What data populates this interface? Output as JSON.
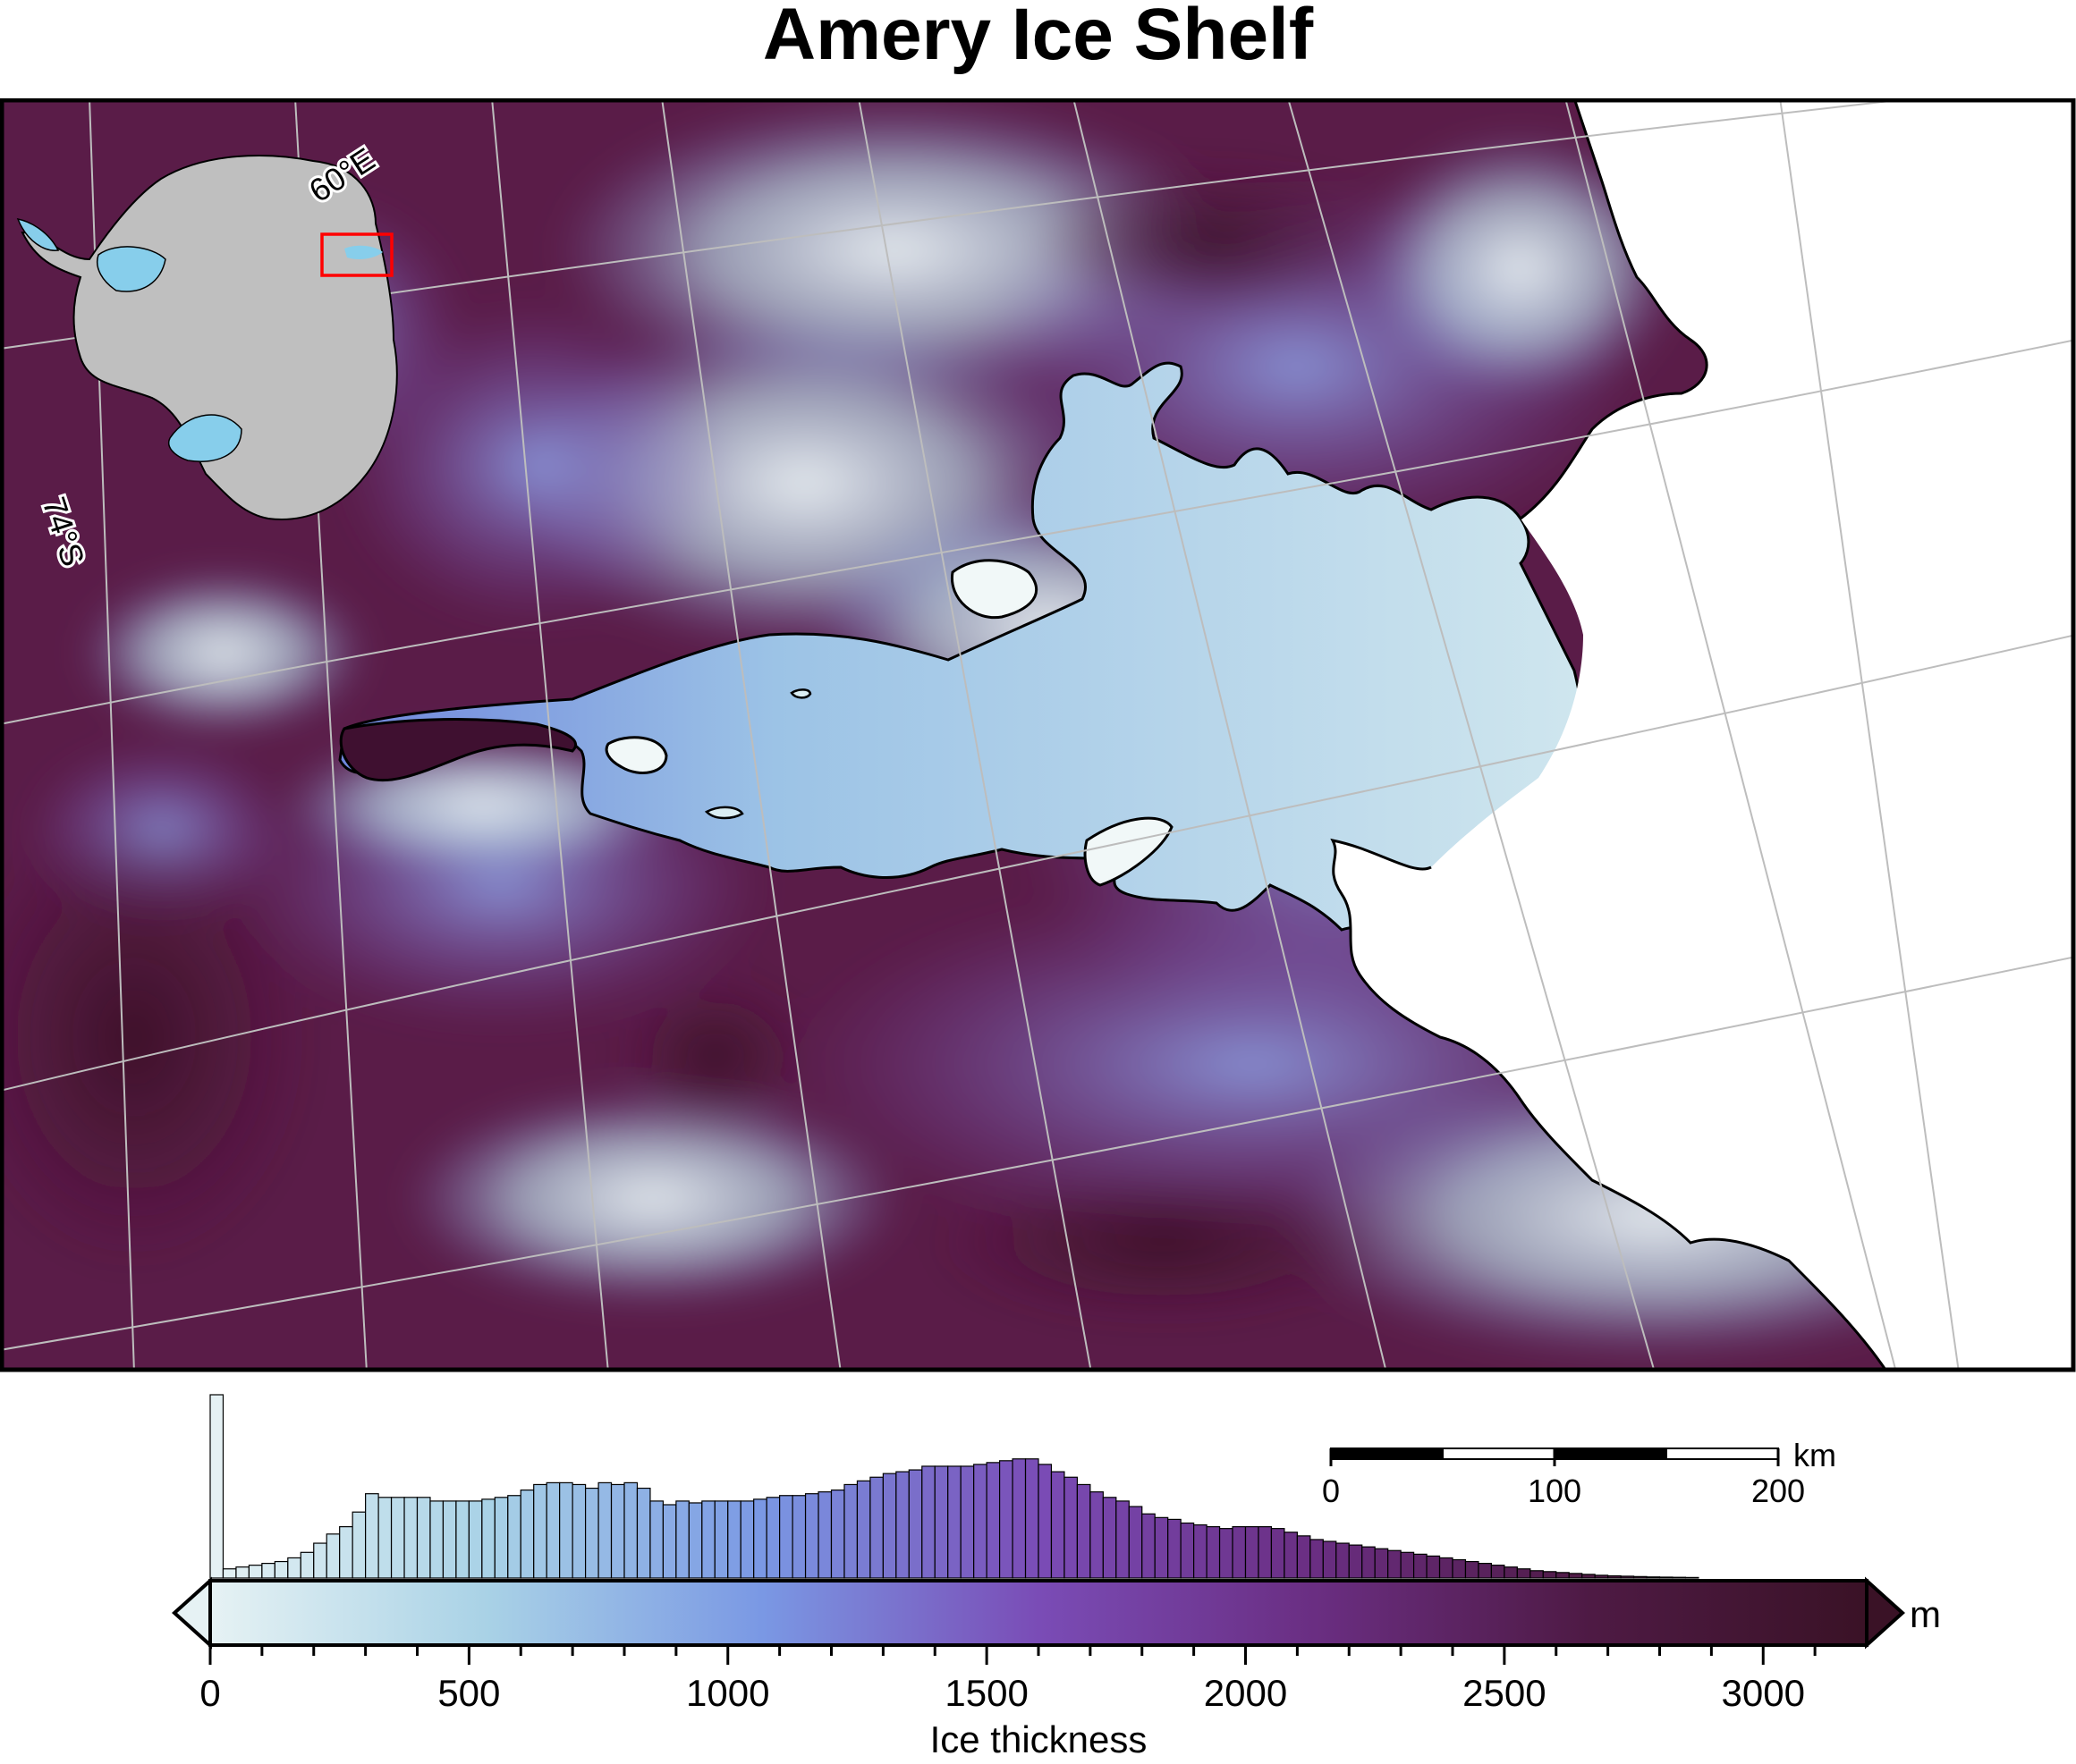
{
  "title": "Amery Ice Shelf",
  "map": {
    "graticule_labels": {
      "longitude": "60°E",
      "latitude": "74°S"
    },
    "colors": {
      "thin_ice": "#e6f2f4",
      "medium_ice": "#7f8fe0",
      "thick_ice": "#4a1232",
      "ocean": "#ffffff",
      "coastline": "#000000",
      "graticule": "#bdbdbd",
      "inset_land": "#bfbfbf",
      "inset_shelves": "#87ceeb",
      "inset_frame": "#ff0000"
    }
  },
  "scalebar": {
    "unit": "km",
    "ticks": [
      "0",
      "100",
      "200"
    ]
  },
  "colorbar": {
    "label": "Ice thickness",
    "unit": "m",
    "range": [
      0,
      3200
    ],
    "tick_labels": [
      "0",
      "500",
      "1000",
      "1500",
      "2000",
      "2500",
      "3000"
    ],
    "tick_values": [
      0,
      500,
      1000,
      1500,
      2000,
      2500,
      3000
    ],
    "stops": [
      "#e6f2f4",
      "#a9d2e6",
      "#7a98e4",
      "#7a4cb6",
      "#6a2e82",
      "#4e1a44",
      "#3a1226"
    ],
    "arrows": "both"
  },
  "histogram": {
    "bin_width": 25,
    "start": 0,
    "note_shape": "counts relative (0-1)",
    "values": [
      1.0,
      0.05,
      0.06,
      0.07,
      0.08,
      0.09,
      0.11,
      0.14,
      0.19,
      0.24,
      0.28,
      0.36,
      0.46,
      0.44,
      0.44,
      0.44,
      0.44,
      0.42,
      0.42,
      0.42,
      0.42,
      0.43,
      0.44,
      0.45,
      0.48,
      0.51,
      0.52,
      0.52,
      0.51,
      0.49,
      0.52,
      0.51,
      0.52,
      0.49,
      0.42,
      0.4,
      0.42,
      0.41,
      0.42,
      0.42,
      0.42,
      0.42,
      0.43,
      0.44,
      0.45,
      0.45,
      0.46,
      0.47,
      0.48,
      0.51,
      0.53,
      0.55,
      0.57,
      0.58,
      0.59,
      0.61,
      0.61,
      0.61,
      0.61,
      0.62,
      0.63,
      0.64,
      0.65,
      0.65,
      0.62,
      0.58,
      0.55,
      0.51,
      0.47,
      0.44,
      0.42,
      0.39,
      0.35,
      0.33,
      0.32,
      0.3,
      0.29,
      0.28,
      0.27,
      0.28,
      0.28,
      0.28,
      0.27,
      0.25,
      0.23,
      0.21,
      0.2,
      0.19,
      0.18,
      0.17,
      0.16,
      0.15,
      0.14,
      0.13,
      0.12,
      0.11,
      0.1,
      0.09,
      0.08,
      0.07,
      0.06,
      0.05,
      0.04,
      0.035,
      0.03,
      0.025,
      0.02,
      0.015,
      0.012,
      0.01,
      0.008,
      0.006,
      0.005,
      0.004,
      0.003,
      0.002,
      0.002,
      0.001,
      0.001,
      0.001,
      0.001,
      0.0005,
      0.0005,
      0.0005,
      0.0003,
      0.0002,
      0.0001,
      0.0001
    ]
  }
}
